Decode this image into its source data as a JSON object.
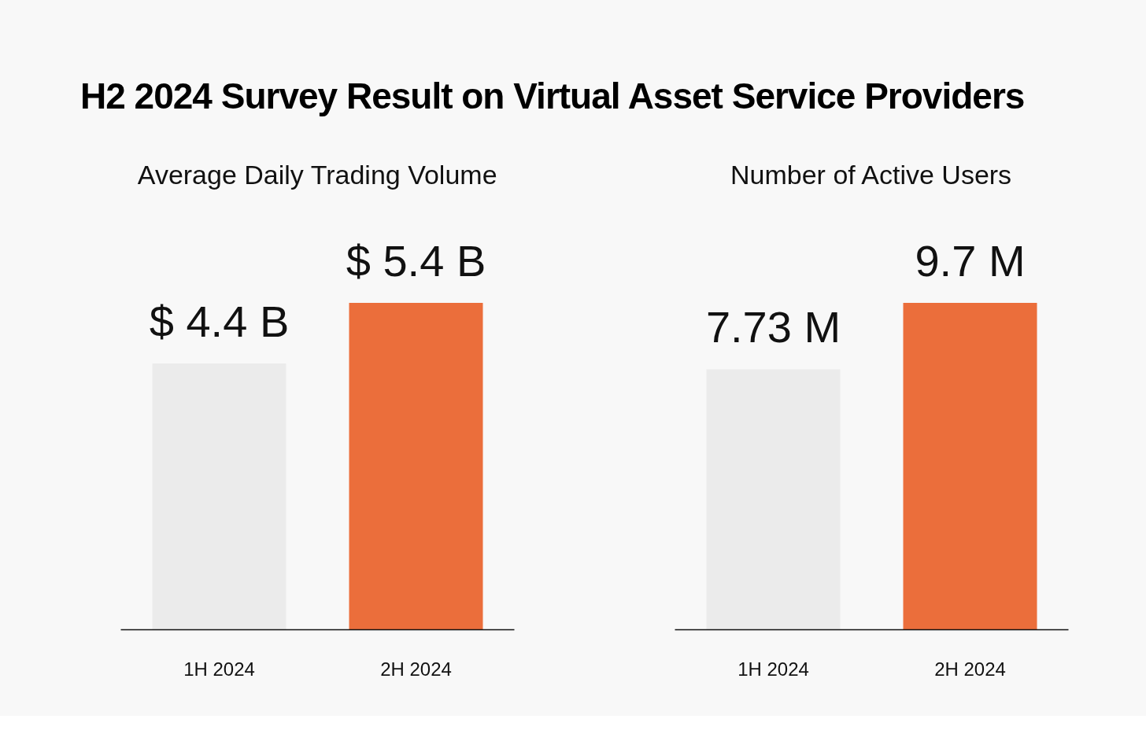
{
  "chart_data": [
    {
      "type": "bar",
      "title": "H2 2024 Survey Result on Virtual Asset Service Providers",
      "subtitle": "Average Daily Trading Volume",
      "categories": [
        "1H 2024",
        "2H 2024"
      ],
      "values": [
        4.4,
        5.4
      ],
      "colors": [
        "#ebebeb",
        "#eb6e3b"
      ],
      "value_labels": [
        "$ 4.4 B",
        "$ 5.4 B"
      ],
      "grid": false,
      "tick_labels": "x"
    },
    {
      "type": "bar",
      "subtitle": "Number of Active Users",
      "categories": [
        "1H 2024",
        "2H 2024"
      ],
      "values": [
        7.73,
        9.7
      ],
      "colors": [
        "#ebebeb",
        "#eb6e3b"
      ],
      "value_labels": [
        "7.73 M",
        "9.7 M"
      ],
      "grid": false,
      "tick_labels": "x"
    }
  ]
}
